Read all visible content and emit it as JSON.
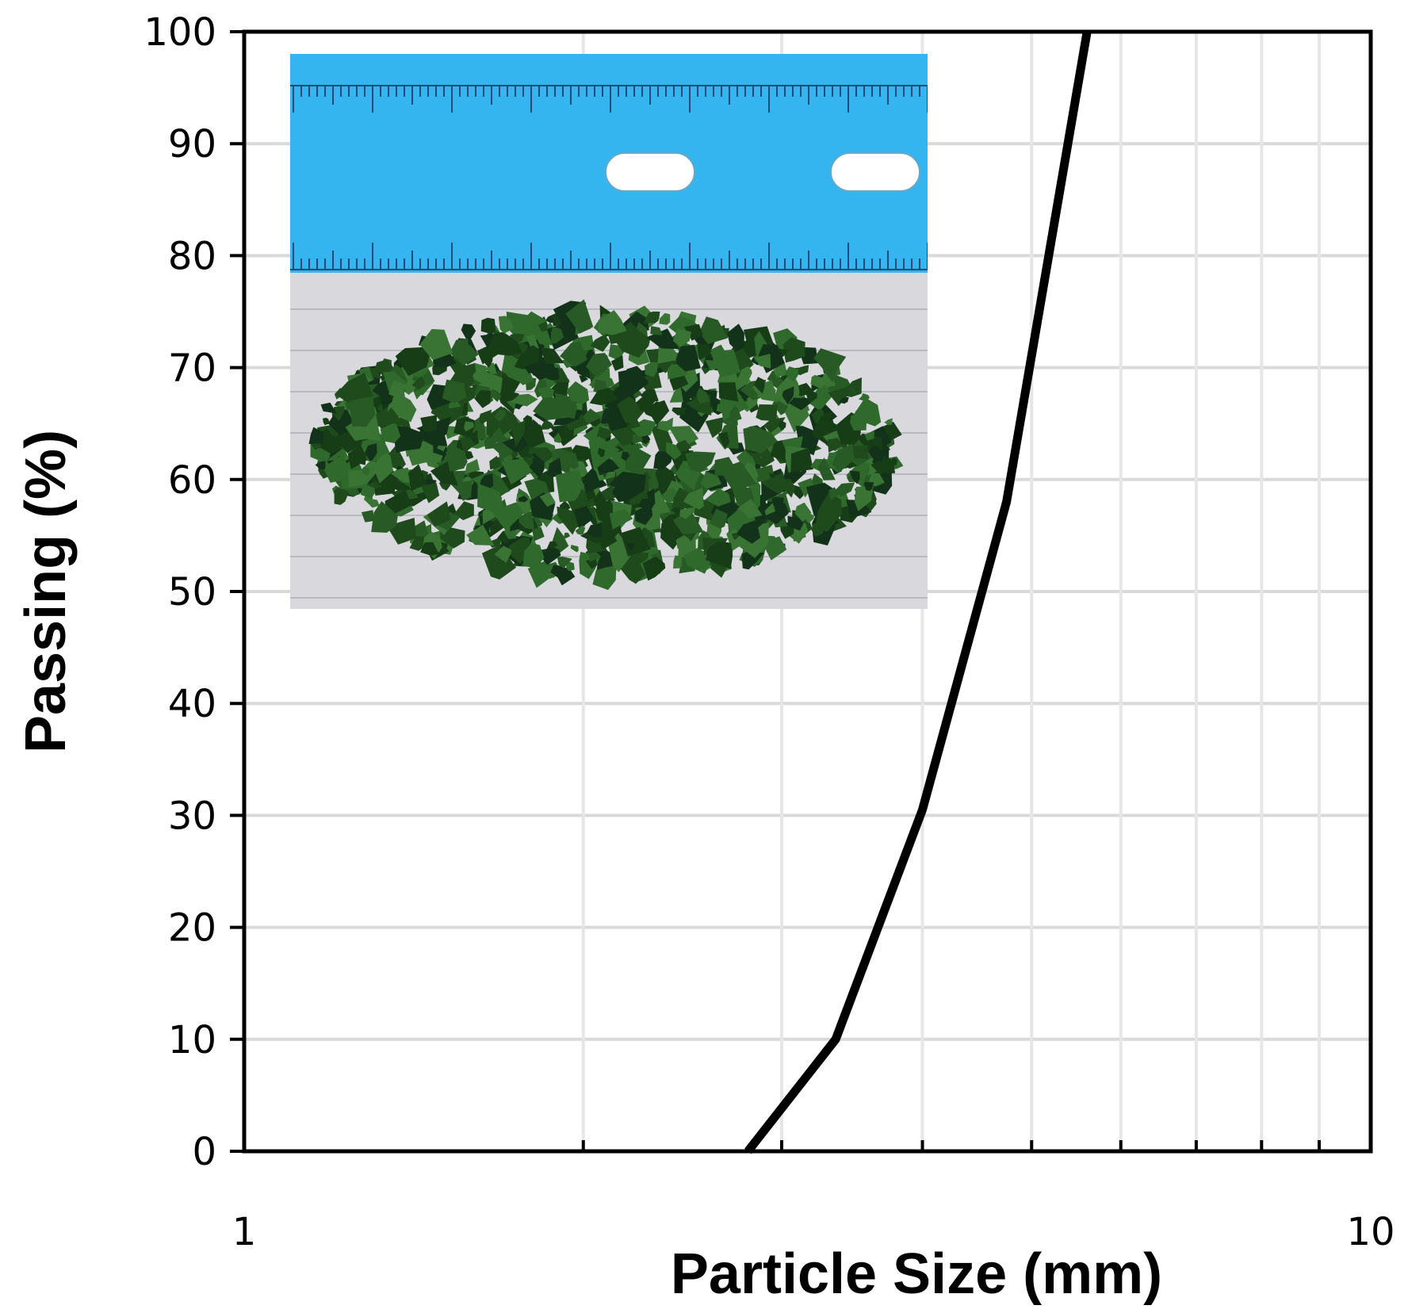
{
  "chart_data": {
    "type": "line",
    "title": "",
    "xlabel": "Particle Size (mm)",
    "ylabel": "Passing (%)",
    "x_scale": "log",
    "xlim": [
      1,
      10
    ],
    "ylim": [
      0,
      100
    ],
    "x_ticks": [
      1,
      10
    ],
    "x_tick_labels": [
      "1",
      "10"
    ],
    "x_minor_gridlines": [
      2,
      3,
      4,
      5,
      6,
      7,
      8,
      9
    ],
    "y_ticks": [
      0,
      10,
      20,
      30,
      40,
      50,
      60,
      70,
      80,
      90,
      100
    ],
    "grid": true,
    "legend": "none",
    "series": [
      {
        "x": [
          2.8,
          3.35,
          4.0,
          4.75,
          5.6
        ],
        "y": [
          0,
          10,
          30.5,
          58,
          100
        ],
        "color": "#000000"
      }
    ],
    "inset_image": {
      "description_icon": "photo-of-green-granules-with-ruler",
      "colors": {
        "ruler": "#33b6f0",
        "background": "#d8d7dc",
        "granules": "#1f4a1c"
      }
    }
  }
}
